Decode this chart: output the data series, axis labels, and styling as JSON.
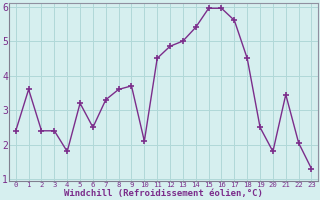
{
  "x": [
    0,
    1,
    2,
    3,
    4,
    5,
    6,
    7,
    8,
    9,
    10,
    11,
    12,
    13,
    14,
    15,
    16,
    17,
    18,
    19,
    20,
    21,
    22,
    23
  ],
  "y": [
    2.4,
    3.6,
    2.4,
    2.4,
    1.8,
    3.2,
    2.5,
    3.3,
    3.6,
    3.7,
    2.1,
    4.5,
    4.85,
    5.0,
    5.4,
    5.95,
    5.95,
    5.6,
    4.5,
    2.5,
    1.8,
    3.45,
    2.05,
    1.3
  ],
  "line_color": "#7b2d8b",
  "marker": "+",
  "marker_color": "#7b2d8b",
  "bg_color": "#d6efef",
  "grid_color": "#b0d8d8",
  "spine_color": "#9090a0",
  "xlabel": "Windchill (Refroidissement éolien,°C)",
  "ylim": [
    1,
    6
  ],
  "xlim": [
    -0.5,
    23.5
  ],
  "yticks": [
    1,
    2,
    3,
    4,
    5,
    6
  ],
  "xticks": [
    0,
    1,
    2,
    3,
    4,
    5,
    6,
    7,
    8,
    9,
    10,
    11,
    12,
    13,
    14,
    15,
    16,
    17,
    18,
    19,
    20,
    21,
    22,
    23
  ],
  "xlabel_color": "#7b2d8b",
  "tick_color": "#7b2d8b",
  "linewidth": 1.0,
  "markersize": 5,
  "tick_fontsize": 5.2,
  "ylabel_fontsize": 7,
  "xlabel_fontsize": 6.5
}
